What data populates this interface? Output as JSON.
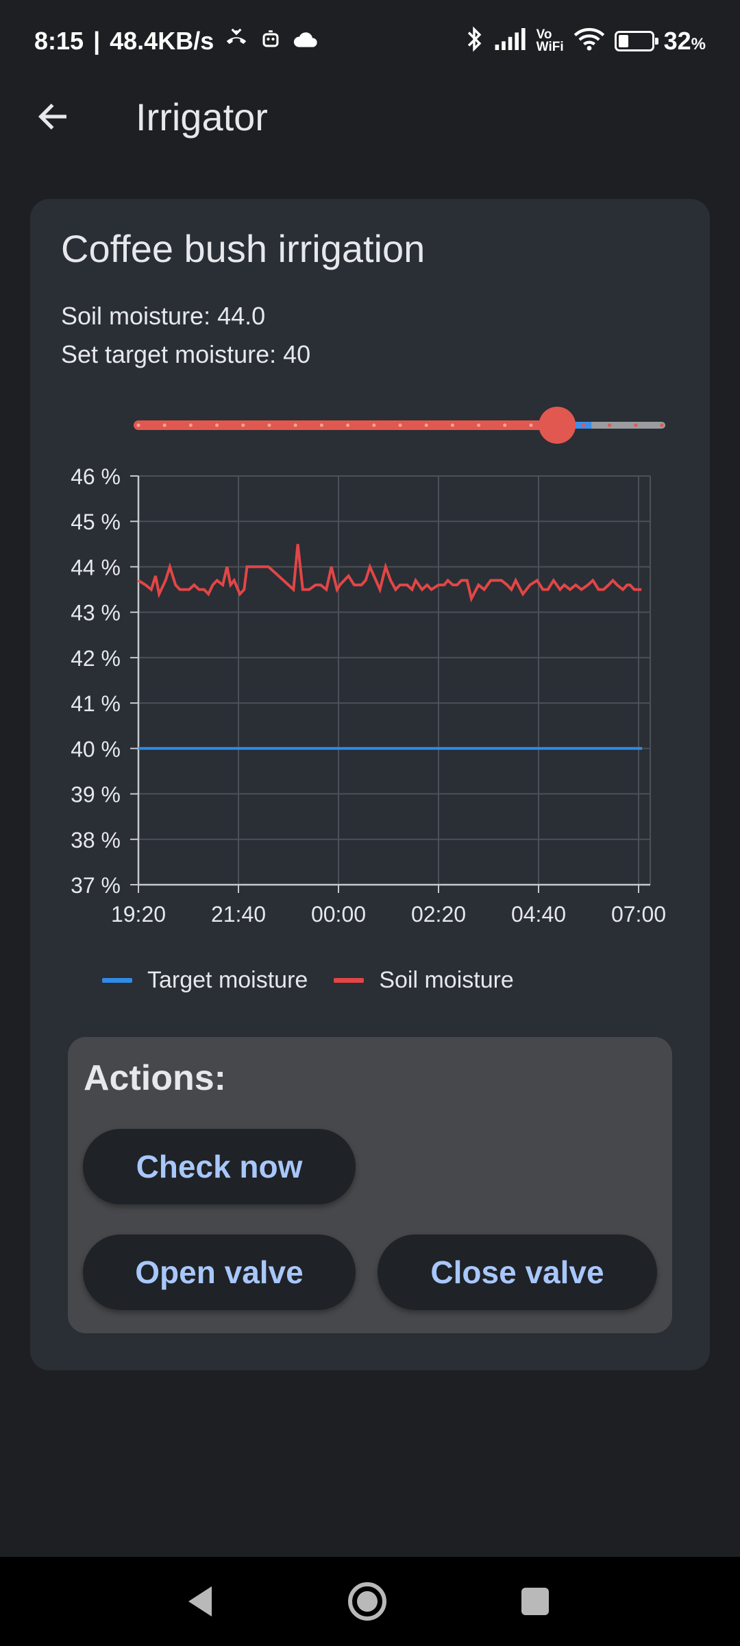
{
  "status_bar": {
    "time": "8:15",
    "separator": "|",
    "speed": "48.4KB/s",
    "battery_percent": "32",
    "battery_suffix": "%",
    "battery_level": 0.32,
    "icons": [
      "missed-call-icon",
      "robot-icon",
      "cloud-icon",
      "bluetooth-icon",
      "signal-icon",
      "vowifi-icon",
      "wifi-icon",
      "battery-icon"
    ],
    "vowifi_top": "Vo",
    "vowifi_bottom": "WiFi"
  },
  "app_bar": {
    "title": "Irrigator",
    "back_icon": "arrow-back-icon"
  },
  "card": {
    "title": "Coffee bush irrigation",
    "soil_moisture_text": "Soil moisture: 44.0",
    "target_moisture_text": "Set target moisture: 40"
  },
  "slider": {
    "value_fraction": 0.8,
    "steps": 20,
    "active_color": "#e0584f",
    "inactive_color": "#9a9c9f",
    "accent_blue": "#3d8ee8"
  },
  "colors": {
    "target": "#2f8be6",
    "soil": "#e24646",
    "card_bg": "#2a2e35",
    "button_text": "#a8c7fa"
  },
  "chart_data": {
    "type": "line",
    "title": "",
    "xlabel": "",
    "ylabel": "",
    "ylim": [
      37,
      46
    ],
    "y_ticks": [
      "46 %",
      "45 %",
      "44 %",
      "43 %",
      "42 %",
      "41 %",
      "40 %",
      "39 %",
      "38 %",
      "37 %"
    ],
    "x_ticks": [
      "19:20",
      "21:40",
      "00:00",
      "02:20",
      "04:40",
      "07:00"
    ],
    "x_range_minutes": [
      0,
      700
    ],
    "grid": true,
    "legend_position": "bottom",
    "series": [
      {
        "name": "Target moisture",
        "color": "#2f8be6",
        "x": [
          0,
          705
        ],
        "y": [
          40,
          40
        ]
      },
      {
        "name": "Soil moisture",
        "color": "#e24646",
        "x": [
          0,
          10,
          18,
          24,
          29,
          38,
          44,
          52,
          58,
          64,
          71,
          78,
          85,
          92,
          98,
          104,
          110,
          118,
          124,
          129,
          134,
          142,
          148,
          152,
          160,
          167,
          175,
          180,
          182,
          210,
          217,
          223,
          230,
          239,
          248,
          255,
          263,
          270,
          278,
          282,
          294,
          302,
          312,
          318,
          324,
          338,
          346,
          353,
          360,
          366,
          376,
          383,
          388,
          397,
          404,
          410,
          420,
          428,
          433,
          440,
          446,
          452,
          460,
          466,
          476,
          484,
          493,
          499,
          508,
          516,
          522,
          528,
          538,
          548,
          558,
          566,
          573,
          581,
          590,
          596,
          604,
          612,
          620,
          629,
          636,
          644,
          651,
          658,
          664,
          670,
          678,
          684,
          688,
          694,
          700,
          704
        ],
        "y": [
          43.7,
          43.6,
          43.5,
          43.8,
          43.4,
          43.7,
          44.0,
          43.6,
          43.5,
          43.5,
          43.5,
          43.6,
          43.5,
          43.5,
          43.4,
          43.6,
          43.7,
          43.6,
          44.0,
          43.6,
          43.7,
          43.4,
          43.5,
          44.0,
          44.0,
          44.0,
          44.0,
          44.0,
          44.0,
          43.6,
          43.5,
          44.5,
          43.5,
          43.5,
          43.6,
          43.6,
          43.5,
          44.0,
          43.5,
          43.6,
          43.8,
          43.6,
          43.6,
          43.7,
          44.0,
          43.5,
          44.0,
          43.7,
          43.5,
          43.6,
          43.6,
          43.5,
          43.7,
          43.5,
          43.6,
          43.5,
          43.6,
          43.6,
          43.7,
          43.6,
          43.6,
          43.7,
          43.7,
          43.3,
          43.6,
          43.5,
          43.7,
          43.7,
          43.7,
          43.6,
          43.5,
          43.7,
          43.4,
          43.6,
          43.7,
          43.5,
          43.5,
          43.7,
          43.5,
          43.6,
          43.5,
          43.6,
          43.5,
          43.6,
          43.7,
          43.5,
          43.5,
          43.6,
          43.7,
          43.6,
          43.5,
          43.6,
          43.6,
          43.5,
          43.5,
          43.5
        ]
      }
    ]
  },
  "legend": {
    "target_label": "Target moisture",
    "soil_label": "Soil moisture"
  },
  "actions": {
    "title": "Actions:",
    "check_now": "Check now",
    "open_valve": "Open valve",
    "close_valve": "Close valve"
  },
  "nav_bar": {
    "icons": [
      "nav-back-icon",
      "nav-home-icon",
      "nav-recents-icon"
    ]
  }
}
